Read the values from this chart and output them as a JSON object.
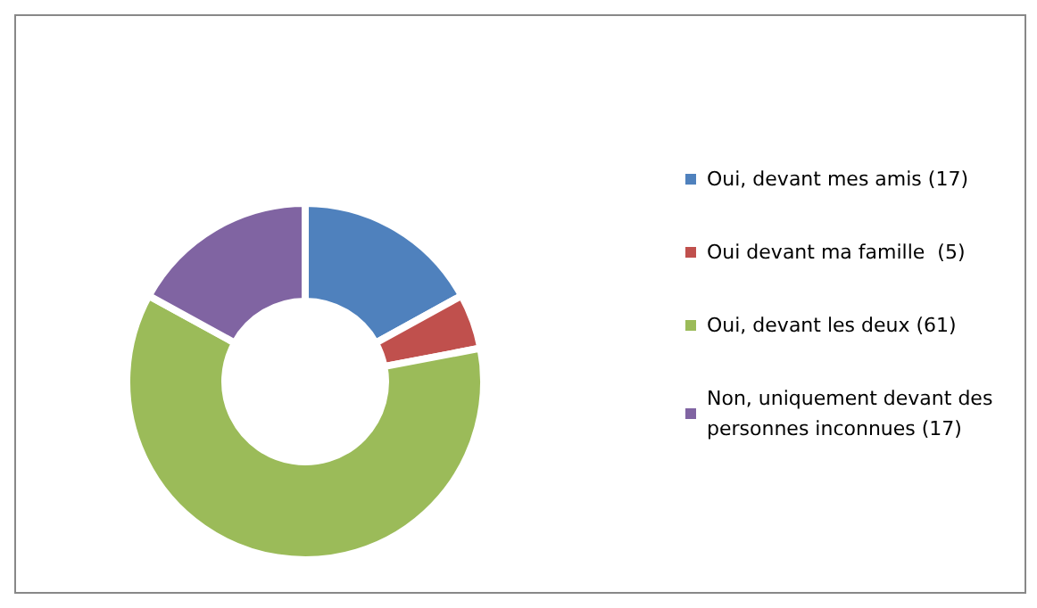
{
  "chart_data": {
    "type": "donut",
    "categories": [
      "Oui, devant mes amis (17)",
      "Oui devant ma famille  (5)",
      "Oui, devant les deux (61)",
      "Non, uniquement devant des personnes inconnues (17)"
    ],
    "values": [
      17,
      5,
      61,
      17
    ],
    "colors": [
      "#4f81bd",
      "#c0504d",
      "#9bbb59",
      "#8064a2"
    ],
    "legend": "right"
  }
}
